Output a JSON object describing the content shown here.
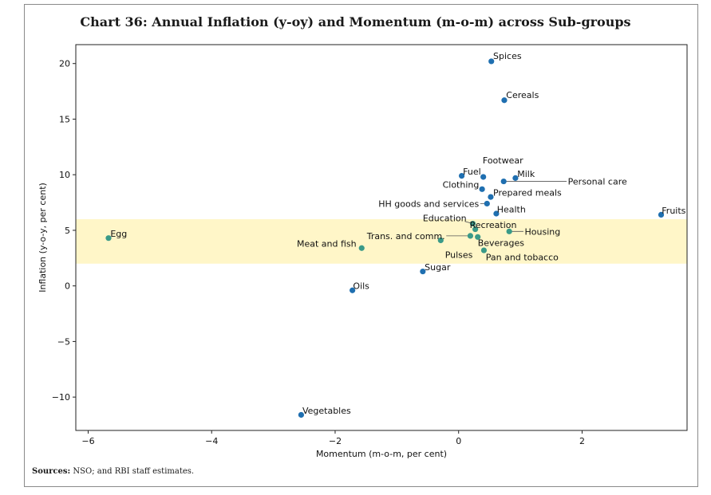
{
  "chart_data": {
    "type": "scatter",
    "title": "Chart 36: Annual Inflation (y-oy) and Momentum (m-o-m) across Sub-groups",
    "xlabel": "Momentum (m-o-m, per cent)",
    "ylabel": "Inflation (y-o-y, per cent)",
    "xlim": [
      -6.2,
      3.7
    ],
    "ylim": [
      -13,
      21.7
    ],
    "xticks": [
      -6,
      -4,
      -2,
      0,
      2
    ],
    "yticks": [
      -10,
      -5,
      0,
      5,
      10,
      15,
      20
    ],
    "band": {
      "from": 2,
      "to": 6,
      "color": "#fff6c8"
    },
    "colors": {
      "blue": "#1f6fb0",
      "green": "#3a9a88",
      "leader": "#555555"
    },
    "points": [
      {
        "name": "Spices",
        "x": 0.53,
        "y": 20.2,
        "color": "blue",
        "lx": 0.56,
        "ly": 20.7,
        "anchor": "start"
      },
      {
        "name": "Cereals",
        "x": 0.74,
        "y": 16.7,
        "color": "blue",
        "lx": 0.77,
        "ly": 17.2,
        "anchor": "start"
      },
      {
        "name": "Footwear",
        "x": 0.4,
        "y": 9.8,
        "color": "blue",
        "lx": 0.39,
        "ly": 11.3,
        "anchor": "start"
      },
      {
        "name": "Fuel",
        "x": 0.05,
        "y": 9.9,
        "color": "blue",
        "lx": 0.07,
        "ly": 10.3,
        "anchor": "start"
      },
      {
        "name": "Milk",
        "x": 0.92,
        "y": 9.7,
        "color": "blue",
        "lx": 0.95,
        "ly": 10.1,
        "anchor": "start"
      },
      {
        "name": "Clothing",
        "x": 0.38,
        "y": 8.7,
        "color": "blue",
        "lx": -0.26,
        "ly": 9.1,
        "anchor": "start"
      },
      {
        "name": "Personal care",
        "x": 0.73,
        "y": 9.4,
        "color": "blue",
        "lx": 1.77,
        "ly": 9.4,
        "anchor": "start",
        "leader": true,
        "lineTo": 1.75
      },
      {
        "name": "Prepared meals",
        "x": 0.52,
        "y": 8.0,
        "color": "blue",
        "lx": 0.56,
        "ly": 8.4,
        "anchor": "start"
      },
      {
        "name": "HH goods and services",
        "x": 0.46,
        "y": 7.4,
        "color": "blue",
        "lx": 0.33,
        "ly": 7.4,
        "anchor": "end",
        "leader": true,
        "lineTo": 0.35
      },
      {
        "name": "Health",
        "x": 0.61,
        "y": 6.5,
        "color": "blue",
        "lx": 0.62,
        "ly": 6.9,
        "anchor": "start"
      },
      {
        "name": "Fruits",
        "x": 3.28,
        "y": 6.4,
        "color": "blue",
        "lx": 3.29,
        "ly": 6.8,
        "anchor": "start"
      },
      {
        "name": "Education",
        "x": 0.23,
        "y": 5.6,
        "color": "green",
        "lx": -0.58,
        "ly": 6.1,
        "anchor": "start",
        "leader": true,
        "lineTo": 0.1,
        "lineToY": 5.8
      },
      {
        "name": "Recreation",
        "x": 0.27,
        "y": 5.1,
        "color": "green",
        "lx": 0.18,
        "ly": 5.5,
        "anchor": "start"
      },
      {
        "name": "Housing",
        "x": 0.82,
        "y": 4.9,
        "color": "green",
        "lx": 1.07,
        "ly": 4.9,
        "anchor": "start",
        "leader": true,
        "lineTo": 1.05
      },
      {
        "name": "Egg",
        "x": -5.67,
        "y": 4.3,
        "color": "green",
        "lx": -5.64,
        "ly": 4.7,
        "anchor": "start"
      },
      {
        "name": "Trans. and comm.",
        "x": 0.19,
        "y": 4.5,
        "color": "green",
        "lx": -0.22,
        "ly": 4.5,
        "anchor": "end",
        "leader": true,
        "lineTo": -0.2
      },
      {
        "name": "Beverages",
        "x": 0.31,
        "y": 4.4,
        "color": "green",
        "lx": 0.31,
        "ly": 3.9,
        "anchor": "start"
      },
      {
        "name": "Pulses",
        "x": -0.29,
        "y": 4.1,
        "color": "green",
        "lx": -0.22,
        "ly": 2.8,
        "anchor": "start"
      },
      {
        "name": "Meat and fish",
        "x": -1.57,
        "y": 3.4,
        "color": "green",
        "lx": -2.62,
        "ly": 3.8,
        "anchor": "start"
      },
      {
        "name": "Pan and tobacco",
        "x": 0.41,
        "y": 3.2,
        "color": "green",
        "lx": 0.44,
        "ly": 2.6,
        "anchor": "start"
      },
      {
        "name": "Sugar",
        "x": -0.58,
        "y": 1.3,
        "color": "blue",
        "lx": -0.55,
        "ly": 1.7,
        "anchor": "start"
      },
      {
        "name": "Oils",
        "x": -1.72,
        "y": -0.4,
        "color": "blue",
        "lx": -1.71,
        "ly": 0.0,
        "anchor": "start"
      },
      {
        "name": "Vegetables",
        "x": -2.55,
        "y": -11.6,
        "color": "blue",
        "lx": -2.53,
        "ly": -11.2,
        "anchor": "start"
      }
    ]
  },
  "source": {
    "label": "Sources:",
    "text": "NSO; and RBI staff estimates."
  }
}
